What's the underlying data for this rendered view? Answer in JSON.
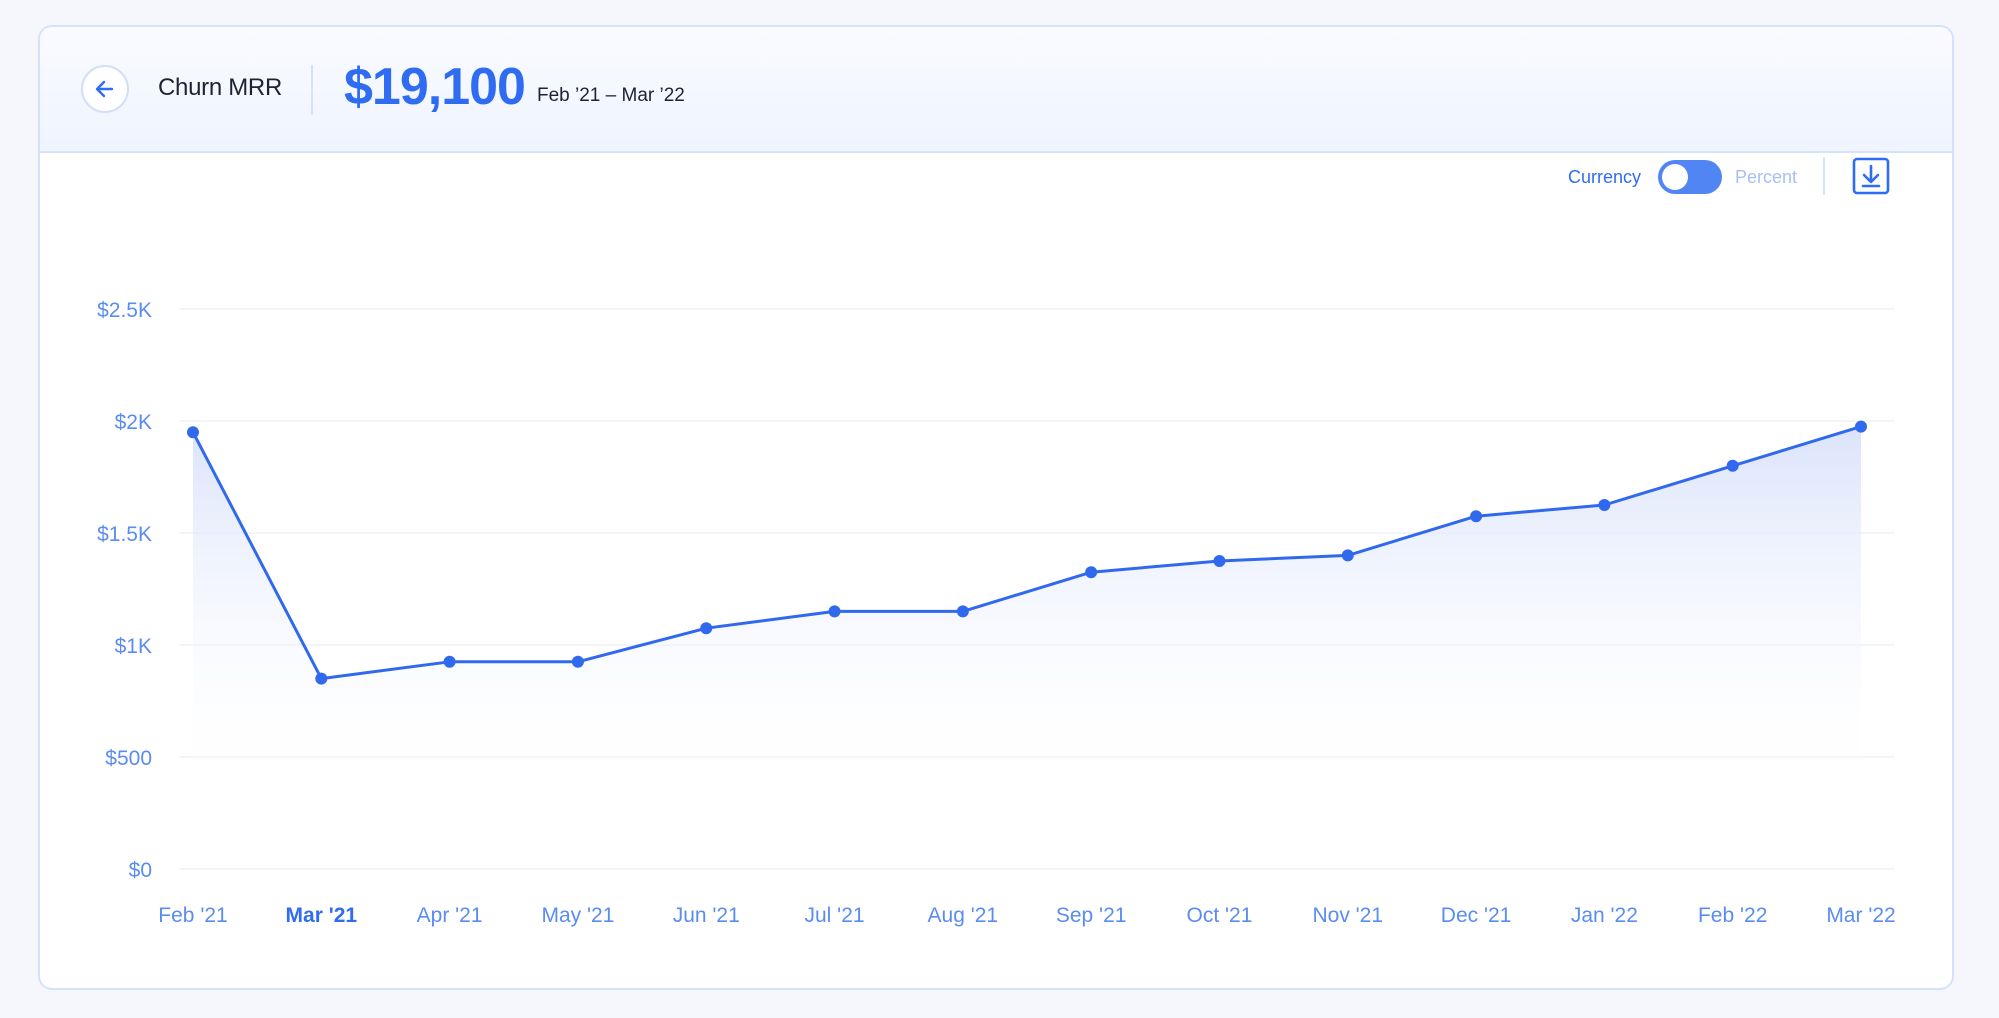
{
  "header": {
    "metric_name": "Churn MRR",
    "metric_value": "$19,100",
    "date_range": "Feb ’21 – Mar ’22"
  },
  "toolbar": {
    "toggle_left_label": "Currency",
    "toggle_right_label": "Percent",
    "toggle_selected": "Currency"
  },
  "icons": {
    "back": "arrow-left-icon",
    "download": "download-icon"
  },
  "colors": {
    "accent": "#2f6cf1",
    "line": "#3169ee",
    "tick_label": "#5b8cf2",
    "area_fill": "#dce5fb"
  },
  "chart_data": {
    "type": "line",
    "title": "",
    "xlabel": "",
    "ylabel": "",
    "categories": [
      "Feb '21",
      "Mar '21",
      "Apr '21",
      "May '21",
      "Jun '21",
      "Jul '21",
      "Aug '21",
      "Sep '21",
      "Oct '21",
      "Nov '21",
      "Dec '21",
      "Jan '22",
      "Feb '22",
      "Mar '22"
    ],
    "highlighted_category": "Mar '21",
    "series": [
      {
        "values": [
          1950,
          850,
          925,
          925,
          1075,
          1150,
          1150,
          1325,
          1375,
          1400,
          1575,
          1625,
          1800,
          1975
        ]
      }
    ],
    "ylim": [
      0,
      2500
    ],
    "yticks": [
      0,
      500,
      1000,
      1500,
      2000,
      2500
    ],
    "ytick_labels": [
      "$0",
      "$500",
      "$1K",
      "$1.5K",
      "$2K",
      "$2.5K"
    ],
    "grid": true,
    "area_fill": true,
    "legend": "none"
  }
}
